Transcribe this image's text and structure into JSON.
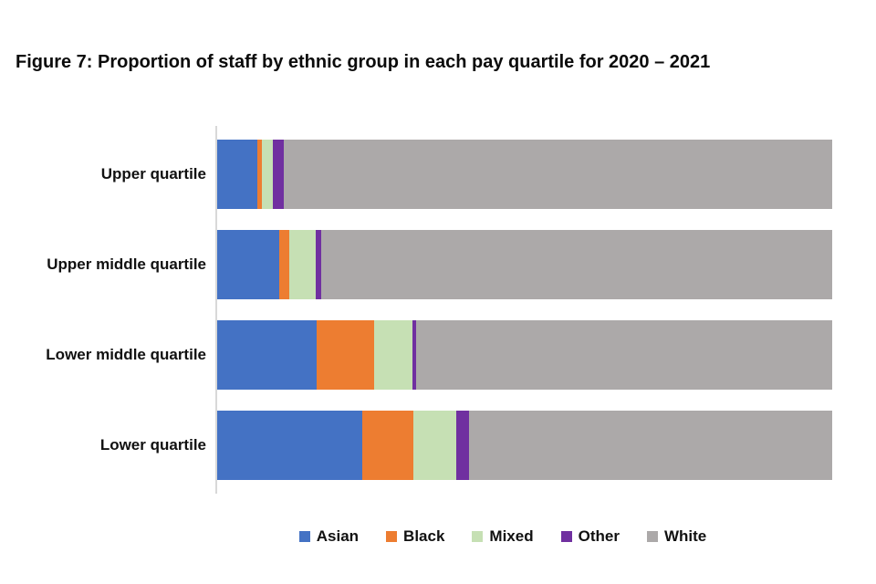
{
  "title": "Figure 7: Proportion of staff by ethnic group in each pay quartile for 2020 – 2021",
  "chart_data": {
    "type": "bar",
    "variant": "horizontal-stacked",
    "title": "Figure 7: Proportion of staff by ethnic group in each pay quartile for 2020 – 2021",
    "xlabel": "",
    "ylabel": "",
    "xlim": [
      0,
      100
    ],
    "unit": "percent",
    "grid": false,
    "legend_position": "bottom",
    "categories": [
      "Upper quartile",
      "Upper middle quartile",
      "Lower middle quartile",
      "Lower quartile"
    ],
    "series": [
      {
        "name": "Asian",
        "color": "#4472C4",
        "values": [
          6.5,
          10.1,
          16.2,
          23.6
        ]
      },
      {
        "name": "Black",
        "color": "#ED7D31",
        "values": [
          0.7,
          1.6,
          9.3,
          8.3
        ]
      },
      {
        "name": "Mixed",
        "color": "#C6E0B4",
        "values": [
          1.9,
          4.4,
          6.2,
          7.0
        ]
      },
      {
        "name": "Other",
        "color": "#7030A0",
        "values": [
          1.8,
          0.8,
          0.7,
          2.1
        ]
      },
      {
        "name": "White",
        "color": "#ACA9A9",
        "values": [
          89.1,
          83.1,
          67.6,
          59.0
        ]
      }
    ]
  }
}
